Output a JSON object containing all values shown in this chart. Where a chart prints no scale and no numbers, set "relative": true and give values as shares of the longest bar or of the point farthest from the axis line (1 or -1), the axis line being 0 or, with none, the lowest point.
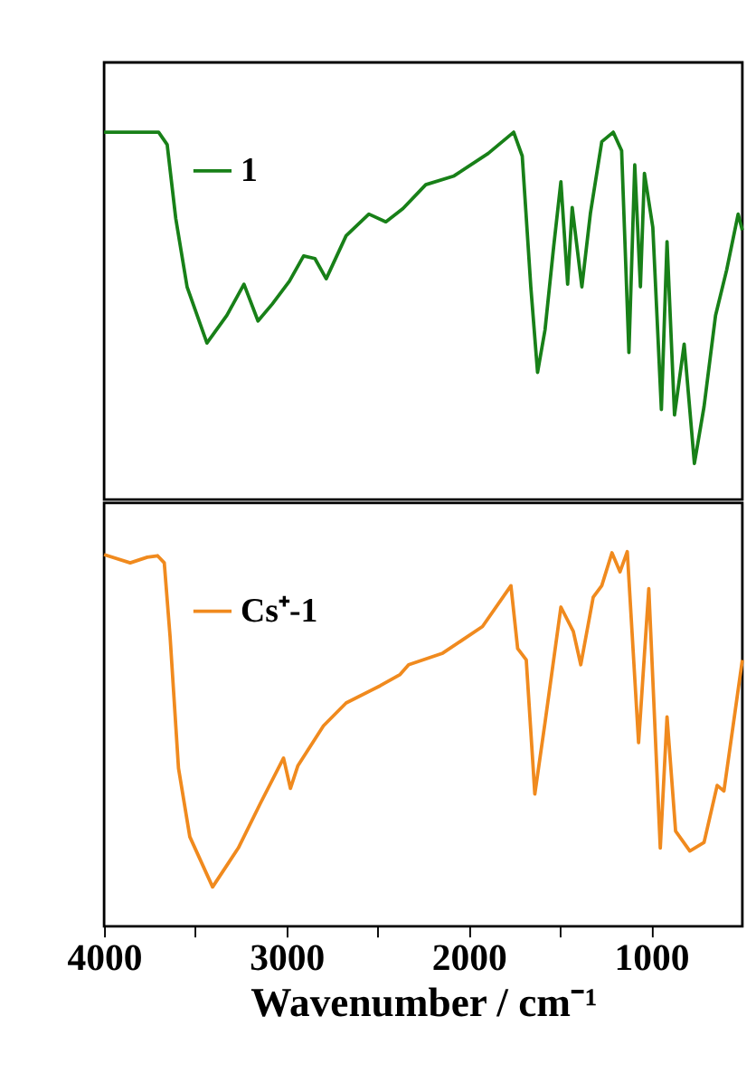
{
  "chart_data": [
    {
      "type": "line",
      "relative": true,
      "xlim": [
        4000,
        500
      ],
      "xticks": [
        4000,
        3000,
        2000,
        1000
      ],
      "tick_labels": false,
      "legend": "top left",
      "grid": false,
      "series": [
        {
          "name": "1",
          "color": "#188018",
          "x": [
            4000,
            3701,
            3654,
            3607,
            3545,
            3436,
            3327,
            3233,
            3156,
            3078,
            2984,
            2906,
            2844,
            2782,
            2673,
            2548,
            2455,
            2361,
            2236,
            2081,
            1894,
            1754,
            1707,
            1660,
            1623,
            1582,
            1535,
            1495,
            1458,
            1433,
            1380,
            1333,
            1271,
            1208,
            1162,
            1122,
            1090,
            1059,
            1037,
            991,
            944,
            913,
            872,
            819,
            763,
            710,
            647,
            586,
            523,
            500
          ],
          "values": [
            1.0,
            1.0,
            0.966,
            0.765,
            0.579,
            0.426,
            0.501,
            0.586,
            0.486,
            0.532,
            0.594,
            0.663,
            0.656,
            0.601,
            0.718,
            0.777,
            0.756,
            0.792,
            0.857,
            0.881,
            0.942,
            1.0,
            0.935,
            0.579,
            0.346,
            0.462,
            0.687,
            0.865,
            0.586,
            0.795,
            0.579,
            0.78,
            0.974,
            1.0,
            0.95,
            0.4,
            0.911,
            0.579,
            0.888,
            0.741,
            0.245,
            0.702,
            0.23,
            0.423,
            0.098,
            0.253,
            0.501,
            0.625,
            0.777,
            0.733
          ]
        }
      ]
    },
    {
      "type": "line",
      "relative": true,
      "xlim": [
        4000,
        500
      ],
      "xticks": [
        4000,
        {
          "value": 3500,
          "label": null
        },
        3000,
        {
          "value": 2500,
          "label": null
        },
        2000,
        {
          "value": 1500,
          "label": null
        },
        1000
      ],
      "tick_labels": "x",
      "xlabel": "Wavenumber / cm⁻¹",
      "legend": "top left",
      "grid": false,
      "series": [
        {
          "name": "Cs⁺-1",
          "color": "#f08a1e",
          "x": [
            4000,
            3857,
            3763,
            3707,
            3670,
            3638,
            3592,
            3530,
            3405,
            3264,
            3140,
            3016,
            2978,
            2937,
            2797,
            2673,
            2486,
            2377,
            2330,
            2143,
            1925,
            1769,
            1732,
            1685,
            1638,
            1582,
            1495,
            1427,
            1386,
            1318,
            1271,
            1215,
            1171,
            1131,
            1069,
            1013,
            950,
            913,
            866,
            788,
            710,
            638,
            601,
            500
          ],
          "values": [
            0.992,
            0.97,
            0.985,
            0.989,
            0.97,
            0.772,
            0.422,
            0.239,
            0.105,
            0.209,
            0.331,
            0.449,
            0.368,
            0.429,
            0.535,
            0.596,
            0.642,
            0.672,
            0.698,
            0.729,
            0.8,
            0.909,
            0.741,
            0.711,
            0.353,
            0.544,
            0.852,
            0.787,
            0.698,
            0.878,
            0.909,
            0.997,
            0.946,
            1.0,
            0.49,
            0.901,
            0.209,
            0.559,
            0.254,
            0.201,
            0.224,
            0.376,
            0.361,
            0.711
          ]
        }
      ]
    }
  ]
}
